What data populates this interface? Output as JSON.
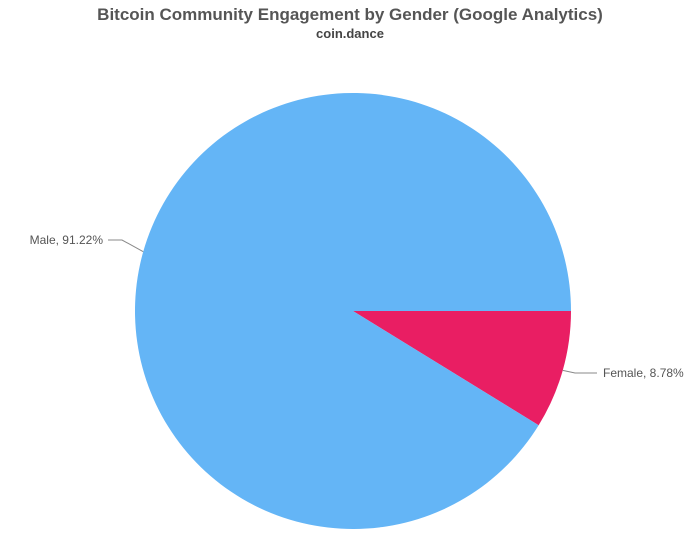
{
  "chart_data": {
    "type": "pie",
    "title": "Bitcoin Community Engagement by Gender (Google Analytics)",
    "subtitle": "coin.dance",
    "slices": [
      {
        "label": "Male",
        "value": 91.22,
        "display": "Male, 91.22%",
        "color": "#64b5f6"
      },
      {
        "label": "Female",
        "value": 8.78,
        "display": "Female, 8.78%",
        "color": "#e91e63"
      }
    ]
  }
}
